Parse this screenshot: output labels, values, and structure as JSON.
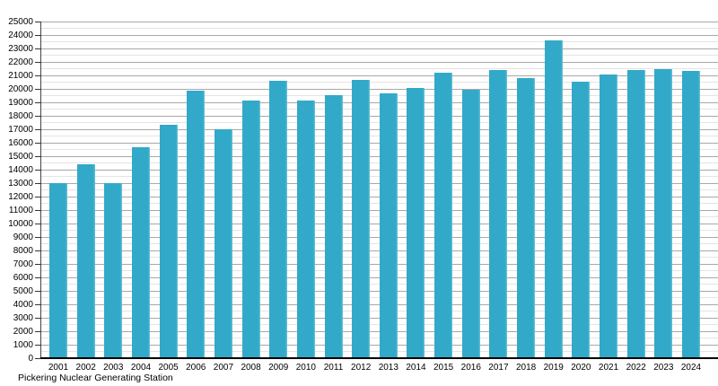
{
  "chart_data": {
    "type": "bar",
    "title": "",
    "caption": "Pickering Nuclear Generating Station",
    "xlabel": "",
    "ylabel": "",
    "categories": [
      "2001",
      "2002",
      "2003",
      "2004",
      "2005",
      "2006",
      "2007",
      "2008",
      "2009",
      "2010",
      "2011",
      "2012",
      "2013",
      "2014",
      "2015",
      "2016",
      "2017",
      "2018",
      "2019",
      "2020",
      "2021",
      "2022",
      "2023",
      "2024"
    ],
    "values": [
      13050,
      14450,
      13050,
      15700,
      17330,
      19920,
      17000,
      19150,
      20650,
      19150,
      19580,
      20700,
      19700,
      20100,
      21250,
      19950,
      21400,
      20820,
      23600,
      20550,
      21100,
      21400,
      21500,
      21350
    ],
    "ylim": [
      0,
      25000
    ],
    "y_major_step": 1000,
    "y_minor_step": 500,
    "grid": "horizontal, major dark + minor light, no vertical grid",
    "legend": "none",
    "colors": {
      "bar": "#32a9c8",
      "bar_edge_highlight": "#6cc5d8",
      "grid_major": "#a8a8a8",
      "grid_minor": "#e4e4e4",
      "axis_line": "#000000",
      "text": "#000000"
    }
  }
}
